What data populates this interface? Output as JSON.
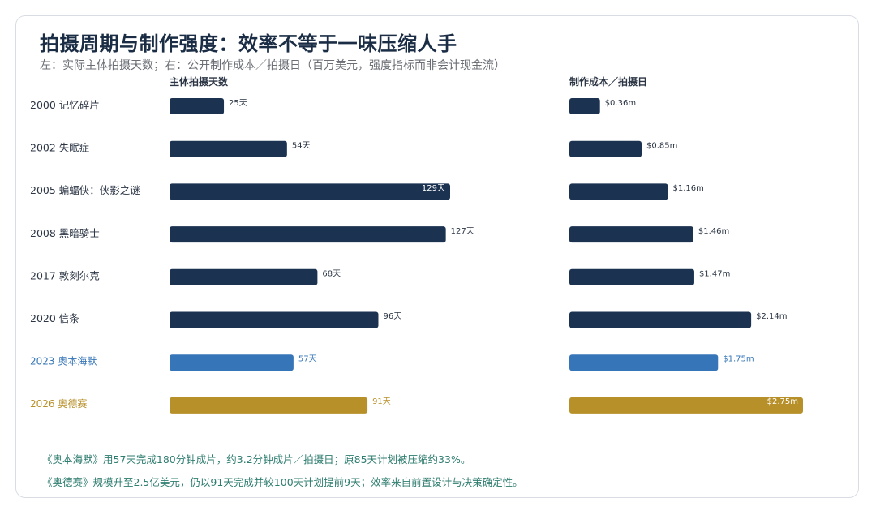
{
  "title": "拍摄周期与制作强度：效率不等于一味压缩人手",
  "subtitle": "左：实际主体拍摄天数；右：公开制作成本／拍摄日（百万美元，强度指标而非会计现金流）",
  "notes": [
    "《奥本海默》用57天完成180分钟成片，约3.2分钟成片／拍摄日；原85天计划被压缩约33%。",
    "《奥德赛》规模升至2.5亿美元，仍以91天完成并较100天计划提前9天；效率来自前置设计与决策确定性。"
  ],
  "colors": {
    "navy": "#1b3251",
    "blue": "#3676b8",
    "gold": "#b8902a",
    "label_dark": "#2b3544",
    "note": "#2e7d6f"
  },
  "chart_data": [
    {
      "type": "bar",
      "orientation": "horizontal",
      "title": "主体拍摄天数",
      "unit_suffix": "天",
      "categories": [
        "2000  记忆碎片",
        "2002  失眠症",
        "2005  蝙蝠侠：侠影之谜",
        "2008  黑暗骑士",
        "2017  敦刻尔克",
        "2020  信条",
        "2023  奥本海默",
        "2026  奥德赛"
      ],
      "values": [
        25,
        54,
        129,
        127,
        68,
        96,
        57,
        91
      ],
      "value_labels": [
        "25天",
        "54天",
        "129天",
        "127天",
        "68天",
        "96天",
        "57天",
        "91天"
      ],
      "xlim": [
        0,
        129
      ],
      "highlight": {
        "2023  奥本海默": "blue",
        "2026  奥德赛": "gold"
      }
    },
    {
      "type": "bar",
      "orientation": "horizontal",
      "title": "制作成本／拍摄日",
      "unit": "百万美元",
      "categories": [
        "2000  记忆碎片",
        "2002  失眠症",
        "2005  蝙蝠侠：侠影之谜",
        "2008  黑暗骑士",
        "2017  敦刻尔克",
        "2020  信条",
        "2023  奥本海默",
        "2026  奥德赛"
      ],
      "values": [
        0.36,
        0.85,
        1.16,
        1.46,
        1.47,
        2.14,
        1.75,
        2.75
      ],
      "value_labels": [
        "$0.36m",
        "$0.85m",
        "$1.16m",
        "$1.46m",
        "$1.47m",
        "$2.14m",
        "$1.75m",
        "$2.75m"
      ],
      "xlim": [
        0,
        2.75
      ],
      "highlight": {
        "2023  奥本海默": "blue",
        "2026  奥德赛": "gold"
      }
    }
  ]
}
